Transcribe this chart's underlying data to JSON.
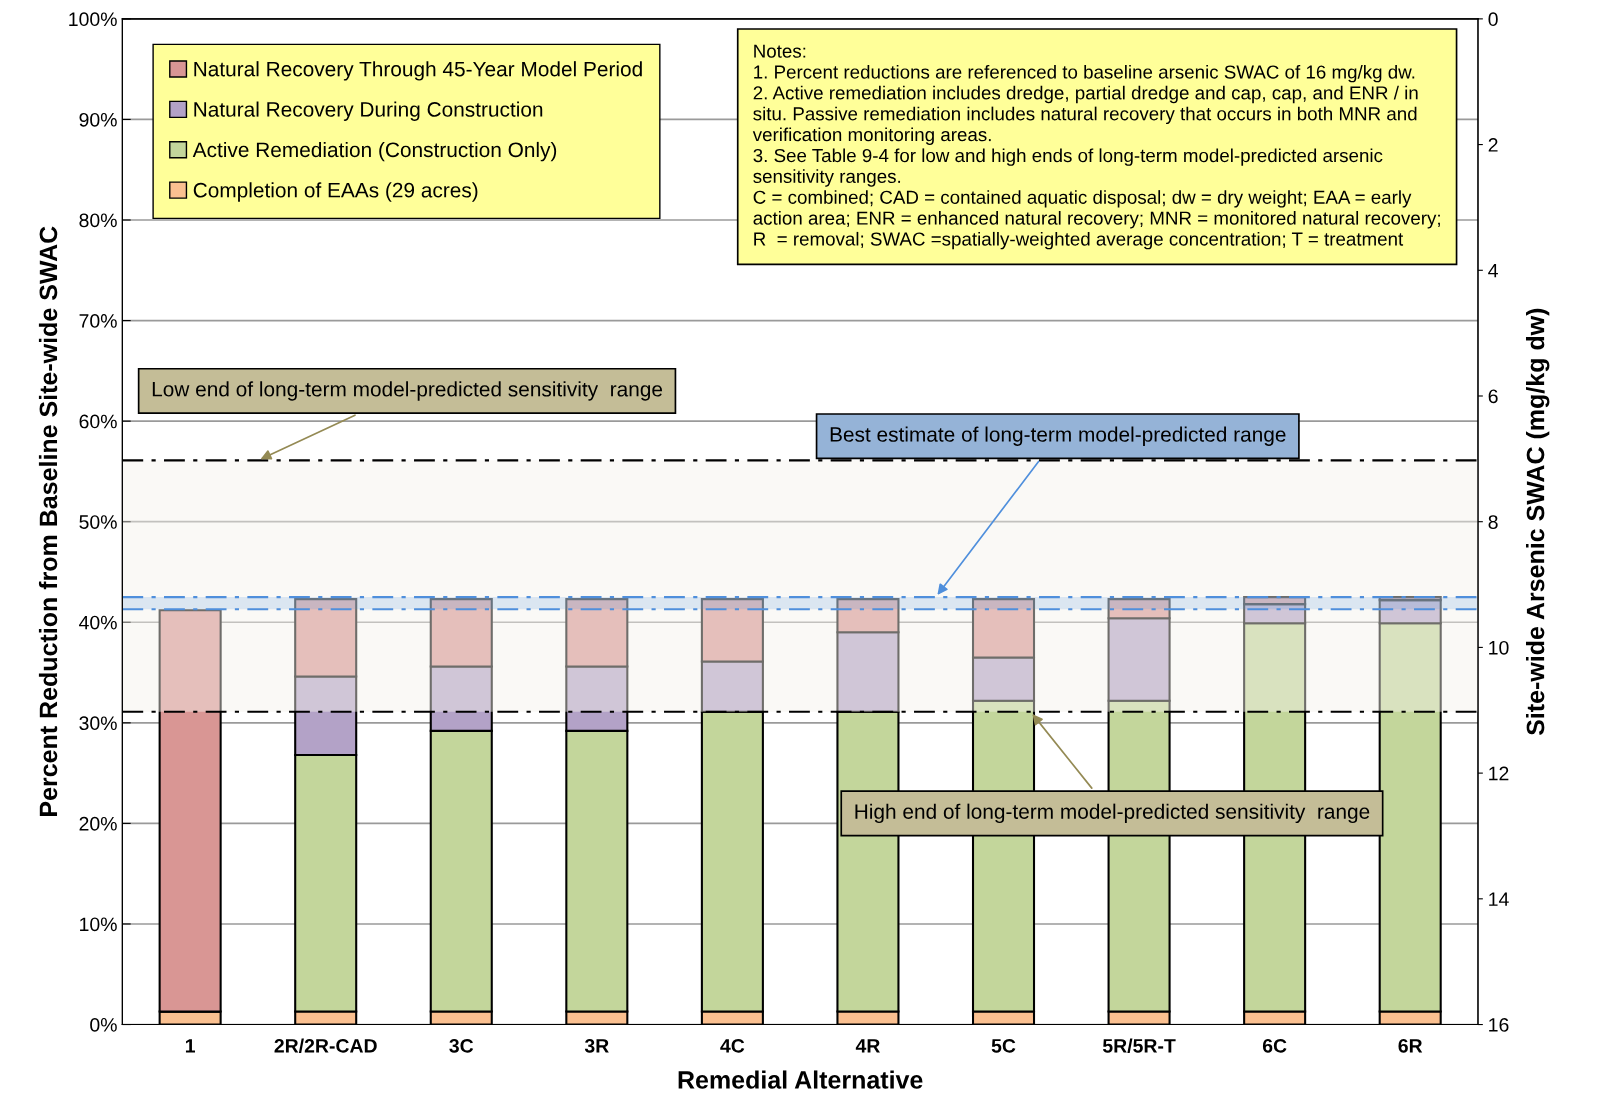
{
  "chart_data": {
    "type": "bar",
    "stacked": true,
    "xlabel": "Remedial Alternative",
    "ylabel": "Percent Reduction from Baseline Site-wide SWAC",
    "y2label": "Site-wide Arsenic SWAC (mg/kg dw)",
    "categories": [
      "1",
      "2R/2R-CAD",
      "3C",
      "3R",
      "4C",
      "4R",
      "5C",
      "5R/5R-T",
      "6C",
      "6R"
    ],
    "series": [
      {
        "name": "Completion of EAAs (29 acres)",
        "color": "#fac090",
        "values": [
          1.3,
          1.3,
          1.3,
          1.3,
          1.3,
          1.3,
          1.3,
          1.3,
          1.3,
          1.3
        ]
      },
      {
        "name": "Active Remediation (Construction Only)",
        "color": "#c3d69b",
        "values": [
          0,
          25.5,
          27.9,
          27.9,
          29.8,
          29.8,
          30.9,
          30.9,
          38.6,
          38.6
        ]
      },
      {
        "name": "Natural Recovery During Construction",
        "color": "#b3a2c7",
        "values": [
          0,
          7.8,
          6.4,
          6.4,
          5.0,
          7.9,
          4.3,
          8.2,
          1.9,
          2.3
        ]
      },
      {
        "name": "Natural Recovery Through 45-Year Model Period",
        "color": "#d99694",
        "values": [
          39.9,
          7.7,
          6.7,
          6.7,
          6.2,
          3.3,
          5.8,
          1.9,
          0.7,
          0.3
        ]
      }
    ],
    "ylim": [
      0,
      100
    ],
    "yticks": [
      {
        "value": 0,
        "label": "0%"
      },
      {
        "value": 10,
        "label": "10%"
      },
      {
        "value": 20,
        "label": "20%"
      },
      {
        "value": 30,
        "label": "30%"
      },
      {
        "value": 40,
        "label": "40%"
      },
      {
        "value": 50,
        "label": "50%"
      },
      {
        "value": 60,
        "label": "60%"
      },
      {
        "value": 70,
        "label": "70%"
      },
      {
        "value": 80,
        "label": "80%"
      },
      {
        "value": 90,
        "label": "90%"
      },
      {
        "value": 100,
        "label": "100%"
      }
    ],
    "y2lim": [
      16,
      0
    ],
    "y2ticks": [
      0,
      2,
      4,
      6,
      8,
      10,
      12,
      14,
      16
    ],
    "grid": "y",
    "legend": "top left",
    "bands": [
      {
        "axis": "y",
        "from": 31.1,
        "to": 56.1,
        "color": "#f3f1ea"
      },
      {
        "axis": "y",
        "from": 41.3,
        "to": 42.5,
        "color": "#4f8fdc",
        "label": "Best estimate of long-term model-predicted range"
      }
    ],
    "ref_lines": [
      {
        "axis": "y",
        "value": 41.3,
        "color": "#4f8fdc",
        "line_style": "dashed"
      },
      {
        "axis": "y",
        "value": 42.5,
        "color": "#4f8fdc",
        "line_style": "dashed"
      },
      {
        "axis": "y",
        "value": 56.1,
        "color": "#000000",
        "line_style": "dashed",
        "label": "Low end of long-term model-predicted sensitivity  range"
      },
      {
        "axis": "y",
        "value": 31.1,
        "color": "#000000",
        "line_style": "dashed",
        "label": "High end of long-term model-predicted sensitivity  range"
      }
    ],
    "annotations": [
      "Notes:\n1. Percent reductions are referenced to baseline arsenic SWAC of 16 mg/kg dw.\n2. Active remediation includes dredge, partial dredge and cap, cap, and ENR / in\nsitu. Passive remediation includes natural recovery that occurs in both MNR and\nverification monitoring areas.\n3. See Table 9-4 for low and high ends of long-term model-predicted arsenic\nsensitivity ranges.\nC = combined; CAD = contained aquatic disposal; dw = dry weight; EAA = early\naction area; ENR = enhanced natural recovery; MNR = monitored natural recovery;\nR  = removal; SWAC =spatially-weighted average concentration; T = treatment"
    ]
  }
}
